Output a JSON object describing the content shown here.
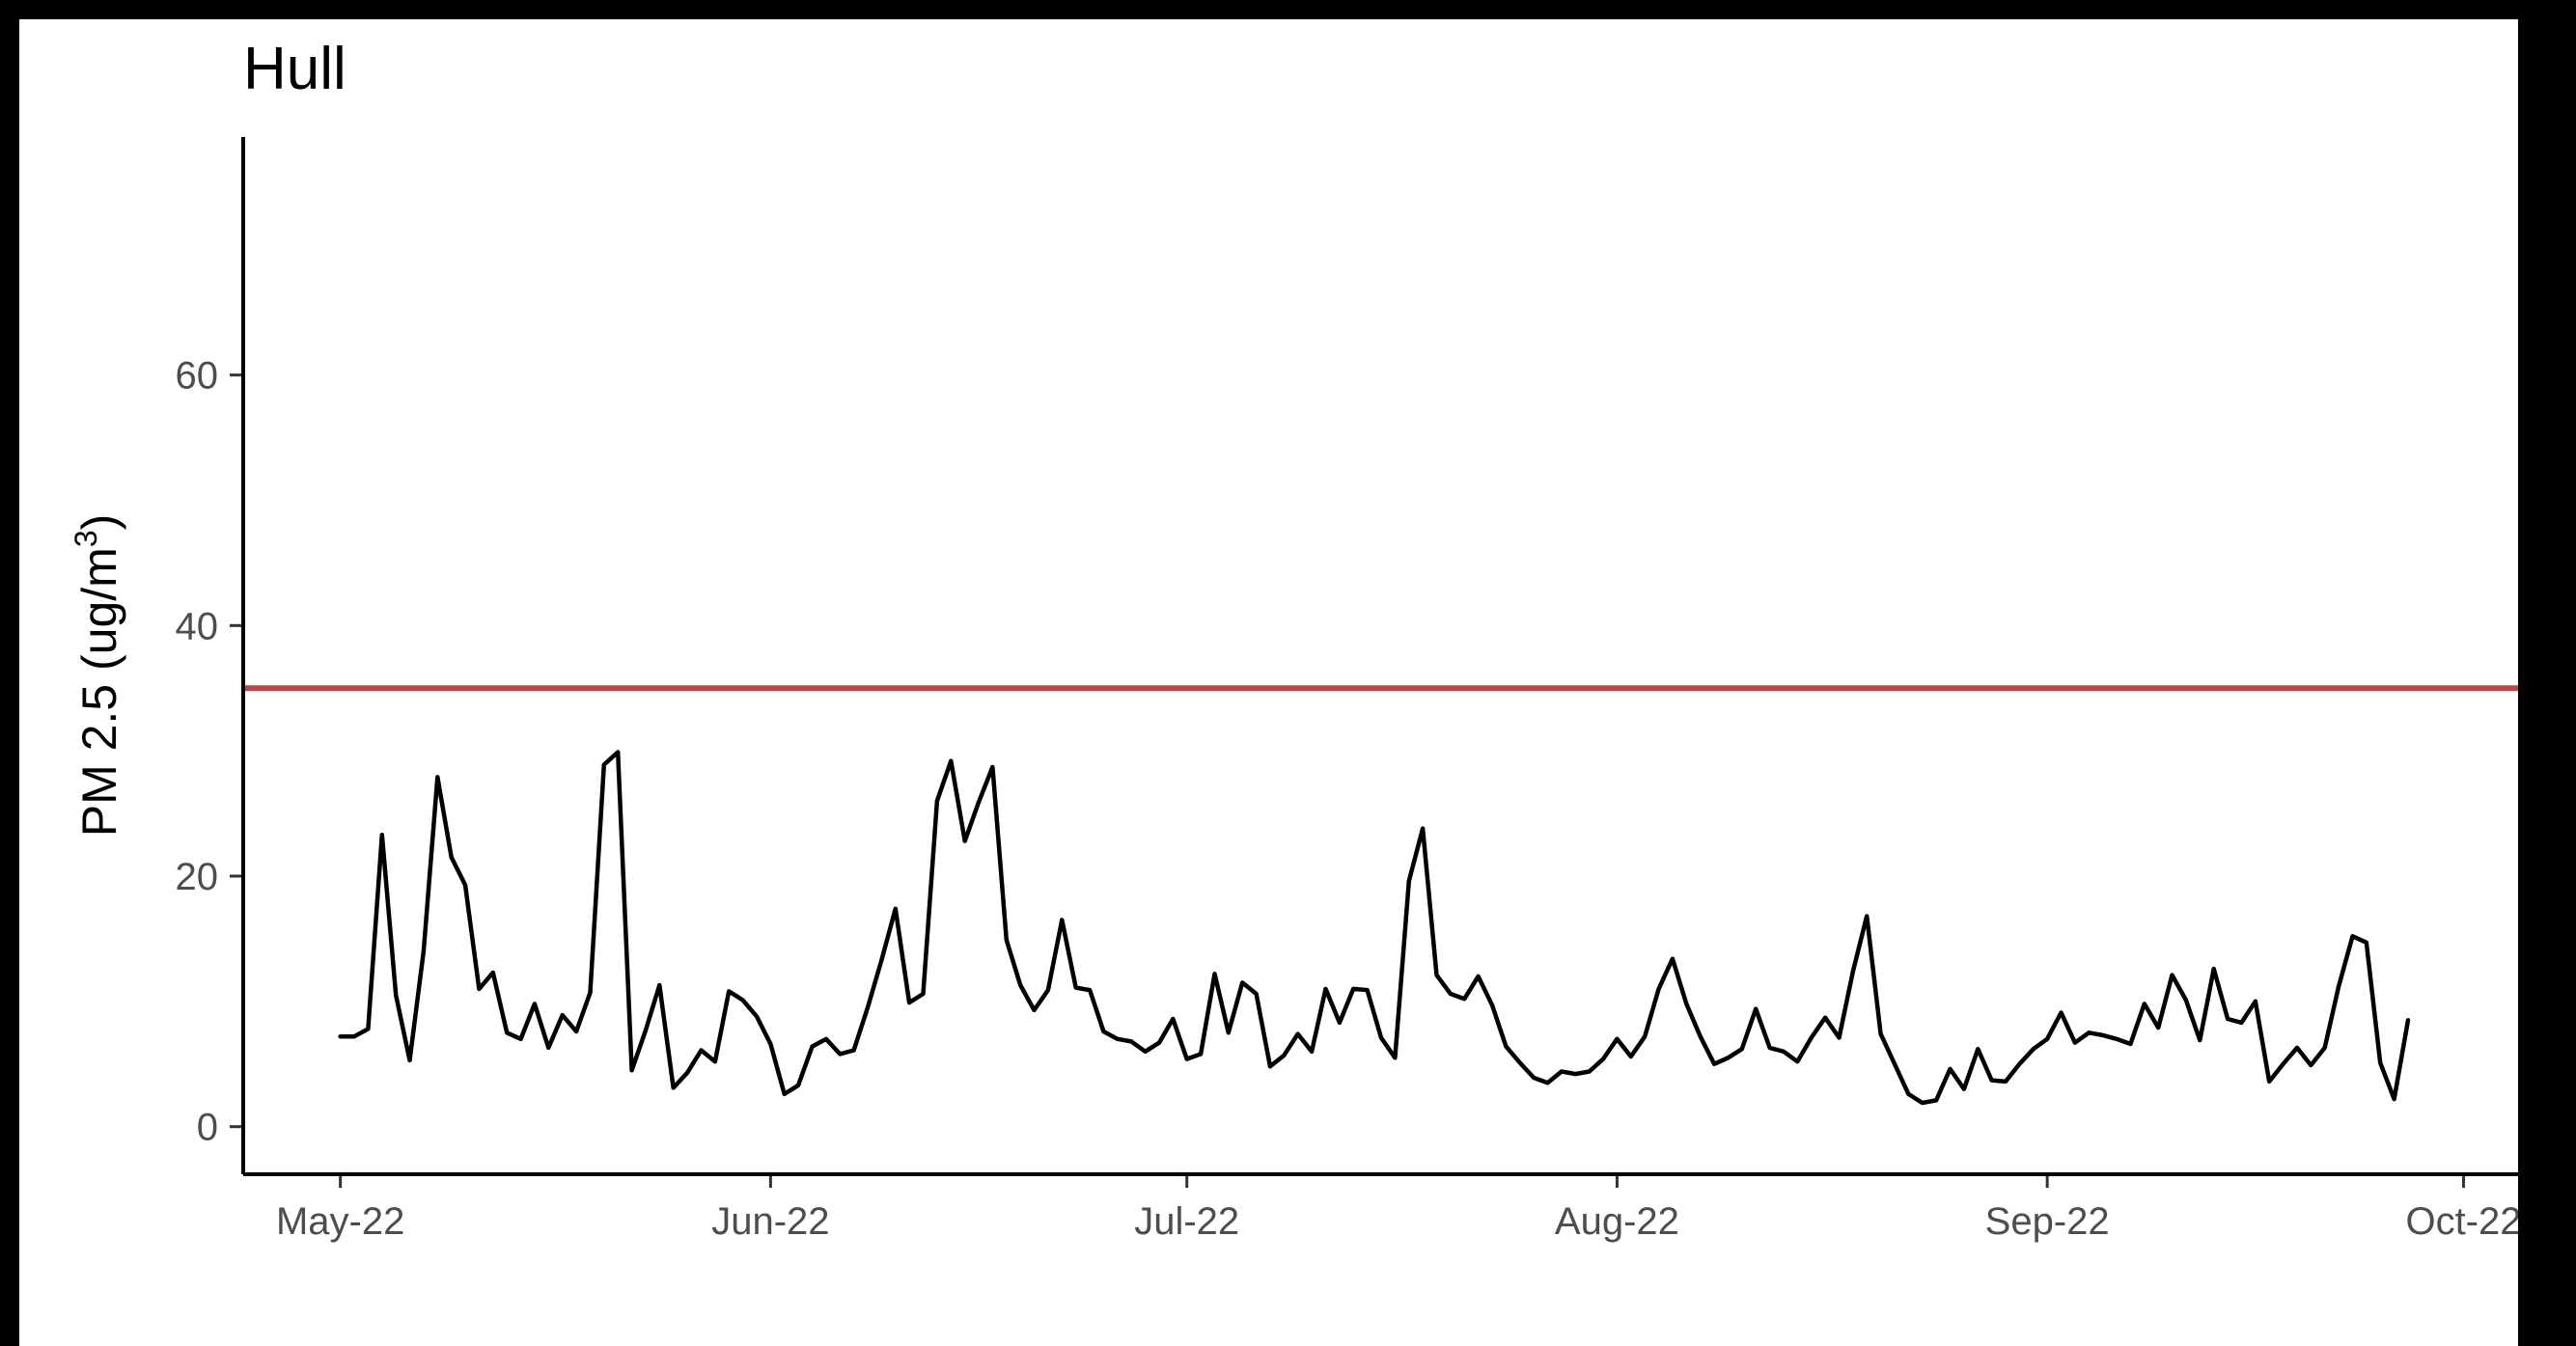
{
  "chart_data": {
    "type": "line",
    "title": "Hull",
    "xlabel": "",
    "ylabel": "PM 2.5 (ug/m",
    "ylabel_superscript": "3",
    "ylabel_close": ")",
    "x_tick_labels": [
      "May-22",
      "Jun-22",
      "Jul-22",
      "Aug-22",
      "Sep-22",
      "Oct-22"
    ],
    "x_tick_dates": [
      "2022-05-01",
      "2022-06-01",
      "2022-07-01",
      "2022-08-01",
      "2022-09-01",
      "2022-10-01"
    ],
    "y_ticks": [
      0,
      20,
      40,
      60
    ],
    "xlim": [
      "2022-04-24",
      "2022-10-05"
    ],
    "ylim": [
      -3.8,
      79
    ],
    "grid": false,
    "reference_line": {
      "y": 35,
      "color": "#b5494c"
    },
    "series": [
      {
        "color": "#000000",
        "points": [
          [
            "2022-05-01",
            7.2
          ],
          [
            "2022-05-02",
            7.2
          ],
          [
            "2022-05-03",
            7.8
          ],
          [
            "2022-05-04",
            23.3
          ],
          [
            "2022-05-05",
            10.5
          ],
          [
            "2022-05-06",
            5.3
          ],
          [
            "2022-05-07",
            14.0
          ],
          [
            "2022-05-08",
            27.9
          ],
          [
            "2022-05-09",
            21.5
          ],
          [
            "2022-05-10",
            19.3
          ],
          [
            "2022-05-11",
            11.0
          ],
          [
            "2022-05-12",
            12.3
          ],
          [
            "2022-05-13",
            7.5
          ],
          [
            "2022-05-14",
            7.0
          ],
          [
            "2022-05-15",
            9.8
          ],
          [
            "2022-05-16",
            6.3
          ],
          [
            "2022-05-17",
            8.9
          ],
          [
            "2022-05-18",
            7.6
          ],
          [
            "2022-05-19",
            10.7
          ],
          [
            "2022-05-20",
            28.9
          ],
          [
            "2022-05-21",
            29.9
          ],
          [
            "2022-05-22",
            4.5
          ],
          [
            "2022-05-23",
            7.7
          ],
          [
            "2022-05-24",
            11.3
          ],
          [
            "2022-05-25",
            3.1
          ],
          [
            "2022-05-26",
            4.3
          ],
          [
            "2022-05-27",
            6.1
          ],
          [
            "2022-05-28",
            5.2
          ],
          [
            "2022-05-29",
            10.8
          ],
          [
            "2022-05-30",
            10.1
          ],
          [
            "2022-05-31",
            8.8
          ],
          [
            "2022-06-01",
            6.6
          ],
          [
            "2022-06-02",
            2.6
          ],
          [
            "2022-06-03",
            3.3
          ],
          [
            "2022-06-04",
            6.4
          ],
          [
            "2022-06-05",
            7.0
          ],
          [
            "2022-06-06",
            5.8
          ],
          [
            "2022-06-07",
            6.1
          ],
          [
            "2022-06-08",
            9.5
          ],
          [
            "2022-06-09",
            13.3
          ],
          [
            "2022-06-10",
            17.4
          ],
          [
            "2022-06-11",
            9.9
          ],
          [
            "2022-06-12",
            10.6
          ],
          [
            "2022-06-13",
            26.0
          ],
          [
            "2022-06-14",
            29.2
          ],
          [
            "2022-06-15",
            22.8
          ],
          [
            "2022-06-16",
            25.9
          ],
          [
            "2022-06-17",
            28.7
          ],
          [
            "2022-06-18",
            14.9
          ],
          [
            "2022-06-19",
            11.3
          ],
          [
            "2022-06-20",
            9.3
          ],
          [
            "2022-06-21",
            10.9
          ],
          [
            "2022-06-22",
            16.5
          ],
          [
            "2022-06-23",
            11.1
          ],
          [
            "2022-06-24",
            10.9
          ],
          [
            "2022-06-25",
            7.6
          ],
          [
            "2022-06-26",
            7.0
          ],
          [
            "2022-06-27",
            6.8
          ],
          [
            "2022-06-28",
            6.0
          ],
          [
            "2022-06-29",
            6.7
          ],
          [
            "2022-06-30",
            8.6
          ],
          [
            "2022-07-01",
            5.4
          ],
          [
            "2022-07-02",
            5.8
          ],
          [
            "2022-07-03",
            12.2
          ],
          [
            "2022-07-04",
            7.5
          ],
          [
            "2022-07-05",
            11.5
          ],
          [
            "2022-07-06",
            10.6
          ],
          [
            "2022-07-07",
            4.8
          ],
          [
            "2022-07-08",
            5.7
          ],
          [
            "2022-07-09",
            7.4
          ],
          [
            "2022-07-10",
            6.0
          ],
          [
            "2022-07-11",
            11.0
          ],
          [
            "2022-07-12",
            8.3
          ],
          [
            "2022-07-13",
            11.0
          ],
          [
            "2022-07-14",
            10.9
          ],
          [
            "2022-07-15",
            7.1
          ],
          [
            "2022-07-16",
            5.5
          ],
          [
            "2022-07-17",
            19.6
          ],
          [
            "2022-07-18",
            23.8
          ],
          [
            "2022-07-19",
            12.1
          ],
          [
            "2022-07-20",
            10.6
          ],
          [
            "2022-07-21",
            10.2
          ],
          [
            "2022-07-22",
            12.0
          ],
          [
            "2022-07-23",
            9.7
          ],
          [
            "2022-07-24",
            6.4
          ],
          [
            "2022-07-25",
            5.1
          ],
          [
            "2022-07-26",
            3.9
          ],
          [
            "2022-07-27",
            3.5
          ],
          [
            "2022-07-28",
            4.4
          ],
          [
            "2022-07-29",
            4.2
          ],
          [
            "2022-07-30",
            4.4
          ],
          [
            "2022-07-31",
            5.4
          ],
          [
            "2022-08-01",
            7.0
          ],
          [
            "2022-08-02",
            5.6
          ],
          [
            "2022-08-03",
            7.2
          ],
          [
            "2022-08-04",
            11.0
          ],
          [
            "2022-08-05",
            13.4
          ],
          [
            "2022-08-06",
            9.8
          ],
          [
            "2022-08-07",
            7.2
          ],
          [
            "2022-08-08",
            5.0
          ],
          [
            "2022-08-09",
            5.5
          ],
          [
            "2022-08-10",
            6.2
          ],
          [
            "2022-08-11",
            9.4
          ],
          [
            "2022-08-12",
            6.3
          ],
          [
            "2022-08-13",
            6.0
          ],
          [
            "2022-08-14",
            5.2
          ],
          [
            "2022-08-15",
            7.1
          ],
          [
            "2022-08-16",
            8.7
          ],
          [
            "2022-08-17",
            7.1
          ],
          [
            "2022-08-18",
            12.4
          ],
          [
            "2022-08-19",
            16.8
          ],
          [
            "2022-08-20",
            7.4
          ],
          [
            "2022-08-21",
            5.0
          ],
          [
            "2022-08-22",
            2.6
          ],
          [
            "2022-08-23",
            1.9
          ],
          [
            "2022-08-24",
            2.1
          ],
          [
            "2022-08-25",
            4.6
          ],
          [
            "2022-08-26",
            3.0
          ],
          [
            "2022-08-27",
            6.2
          ],
          [
            "2022-08-28",
            3.7
          ],
          [
            "2022-08-29",
            3.6
          ],
          [
            "2022-08-30",
            5.0
          ],
          [
            "2022-08-31",
            6.2
          ],
          [
            "2022-09-01",
            7.0
          ],
          [
            "2022-09-02",
            9.1
          ],
          [
            "2022-09-03",
            6.7
          ],
          [
            "2022-09-04",
            7.5
          ],
          [
            "2022-09-05",
            7.3
          ],
          [
            "2022-09-06",
            7.0
          ],
          [
            "2022-09-07",
            6.6
          ],
          [
            "2022-09-08",
            9.8
          ],
          [
            "2022-09-09",
            7.9
          ],
          [
            "2022-09-10",
            12.1
          ],
          [
            "2022-09-11",
            10.1
          ],
          [
            "2022-09-12",
            6.9
          ],
          [
            "2022-09-13",
            12.6
          ],
          [
            "2022-09-14",
            8.6
          ],
          [
            "2022-09-15",
            8.3
          ],
          [
            "2022-09-16",
            10.0
          ],
          [
            "2022-09-17",
            3.6
          ],
          [
            "2022-09-18",
            5.0
          ],
          [
            "2022-09-19",
            6.3
          ],
          [
            "2022-09-20",
            4.9
          ],
          [
            "2022-09-21",
            6.3
          ],
          [
            "2022-09-22",
            11.2
          ],
          [
            "2022-09-23",
            15.2
          ],
          [
            "2022-09-24",
            14.7
          ],
          [
            "2022-09-25",
            5.1
          ],
          [
            "2022-09-26",
            2.2
          ],
          [
            "2022-09-27",
            8.5
          ]
        ]
      }
    ]
  }
}
